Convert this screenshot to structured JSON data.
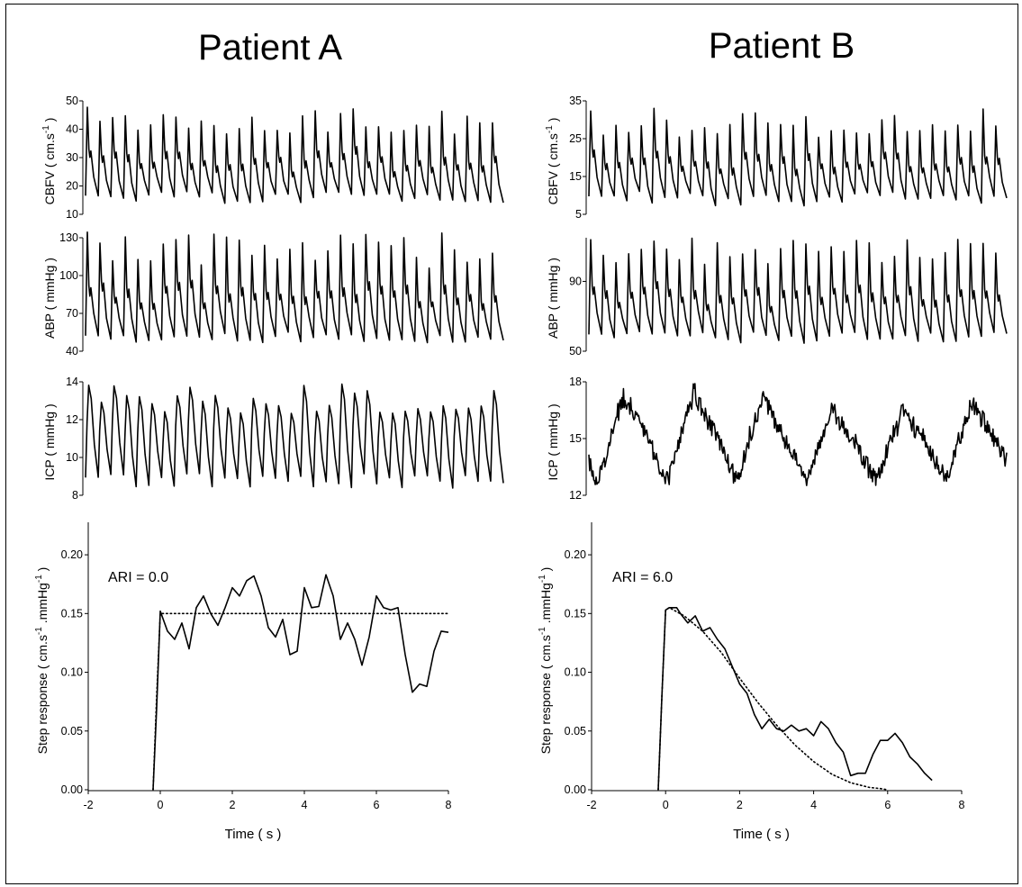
{
  "titles": {
    "patient_a": "Patient A",
    "patient_b": "Patient B"
  },
  "labels": {
    "cbfv": "CBFV ( cm.s -1 )",
    "abp": "ABP ( mmHg )",
    "icp": "ICP ( mmHg )",
    "step": "Step response ( cm.s -1 .mmHg -1 )",
    "time": "Time ( s )"
  },
  "chart_data": [
    {
      "type": "line",
      "panel": "Patient A",
      "signal": "CBFV",
      "ylabel": "CBFV ( cm.s -1 )",
      "ylim": [
        10,
        50
      ],
      "yticks": [
        10,
        20,
        30,
        40,
        50
      ],
      "waveform": {
        "beats": 33,
        "baseline": [
          14,
          18
        ],
        "peak": [
          38,
          48
        ]
      }
    },
    {
      "type": "line",
      "panel": "Patient A",
      "signal": "ABP",
      "ylabel": "ABP ( mmHg )",
      "ylim": [
        40,
        130
      ],
      "yticks": [
        40,
        70,
        100,
        130
      ],
      "waveform": {
        "beats": 33,
        "baseline": [
          47,
          55
        ],
        "peak": [
          105,
          135
        ]
      }
    },
    {
      "type": "line",
      "panel": "Patient A",
      "signal": "ICP",
      "ylabel": "ICP ( mmHg )",
      "ylim": [
        8,
        14
      ],
      "yticks": [
        8,
        10,
        12,
        14
      ],
      "waveform": {
        "beats": 33,
        "baseline": [
          8.4,
          9.2
        ],
        "peak": [
          12.3,
          13.9
        ]
      }
    },
    {
      "type": "line",
      "panel": "Patient A",
      "title": "ARI = 0.0",
      "xlabel": "Time ( s )",
      "ylabel": "Step response ( cm.s -1 .mmHg -1 )",
      "xlim": [
        -2,
        8
      ],
      "ylim": [
        0,
        0.22
      ],
      "xticks": [
        -2,
        0,
        2,
        4,
        6,
        8
      ],
      "yticks": [
        0.0,
        0.05,
        0.1,
        0.15,
        0.2
      ],
      "series": [
        {
          "style": "solid",
          "x": [
            -0.2,
            -0.1,
            0.0,
            0.2,
            0.4,
            0.6,
            0.8,
            1.0,
            1.2,
            1.4,
            1.6,
            1.8,
            2.0,
            2.2,
            2.4,
            2.6,
            2.8,
            3.0,
            3.2,
            3.4,
            3.6,
            3.8,
            4.0,
            4.2,
            4.4,
            4.6,
            4.8,
            5.0,
            5.2,
            5.4,
            5.6,
            5.8,
            6.0,
            6.2,
            6.4,
            6.6,
            6.8,
            7.0,
            7.2,
            7.4,
            7.6,
            7.8,
            8.0
          ],
          "y": [
            0.0,
            0.07,
            0.152,
            0.135,
            0.128,
            0.142,
            0.12,
            0.155,
            0.165,
            0.15,
            0.14,
            0.155,
            0.172,
            0.165,
            0.178,
            0.182,
            0.165,
            0.138,
            0.13,
            0.145,
            0.115,
            0.118,
            0.172,
            0.155,
            0.156,
            0.183,
            0.165,
            0.128,
            0.142,
            0.128,
            0.106,
            0.13,
            0.165,
            0.155,
            0.153,
            0.155,
            0.115,
            0.083,
            0.09,
            0.088,
            0.118,
            0.135,
            0.134
          ]
        },
        {
          "style": "dotted",
          "x": [
            -0.2,
            -0.1,
            0.0,
            0.3,
            1.0,
            2.0,
            3.0,
            4.0,
            5.0,
            6.0,
            7.0,
            8.0
          ],
          "y": [
            0.0,
            0.08,
            0.15,
            0.15,
            0.15,
            0.15,
            0.15,
            0.15,
            0.15,
            0.15,
            0.15,
            0.15
          ]
        }
      ]
    },
    {
      "type": "line",
      "panel": "Patient B",
      "signal": "CBFV",
      "ylabel": "CBFV ( cm.s -1 )",
      "ylim": [
        5,
        35
      ],
      "yticks": [
        5,
        15,
        25,
        35
      ],
      "waveform": {
        "beats": 33,
        "baseline": [
          7,
          11
        ],
        "peak": [
          25,
          33
        ]
      }
    },
    {
      "type": "line",
      "panel": "Patient B",
      "signal": "ABP",
      "ylabel": "ABP ( mmHg )",
      "ylim": [
        50,
        115
      ],
      "yticks": [
        50,
        90
      ],
      "waveform": {
        "beats": 33,
        "baseline": [
          54,
          62
        ],
        "peak": [
          100,
          115
        ]
      }
    },
    {
      "type": "line",
      "panel": "Patient B",
      "signal": "ICP",
      "ylabel": "ICP ( mmHg )",
      "ylim": [
        12,
        18
      ],
      "yticks": [
        12,
        15,
        18
      ],
      "waveform": {
        "slow_waves": 6,
        "baseline": [
          12.3,
          13.5
        ],
        "peak": [
          16.4,
          17.5
        ]
      }
    },
    {
      "type": "line",
      "panel": "Patient B",
      "title": "ARI = 6.0",
      "xlabel": "Time ( s )",
      "ylabel": "Step response ( cm.s -1 .mmHg -1 )",
      "xlim": [
        -2,
        8
      ],
      "ylim": [
        0,
        0.22
      ],
      "xticks": [
        -2,
        0,
        2,
        4,
        6,
        8
      ],
      "yticks": [
        0.0,
        0.05,
        0.1,
        0.15,
        0.2
      ],
      "series": [
        {
          "style": "solid",
          "x": [
            -0.2,
            -0.1,
            0.0,
            0.1,
            0.3,
            0.4,
            0.6,
            0.8,
            1.0,
            1.2,
            1.4,
            1.6,
            1.8,
            2.0,
            2.2,
            2.4,
            2.6,
            2.8,
            3.0,
            3.2,
            3.4,
            3.6,
            3.8,
            4.0,
            4.2,
            4.4,
            4.6,
            4.8,
            5.0,
            5.2,
            5.4,
            5.6,
            5.8,
            6.0,
            6.2,
            6.4,
            6.6,
            6.8,
            7.0,
            7.2
          ],
          "y": [
            0.0,
            0.08,
            0.153,
            0.155,
            0.155,
            0.15,
            0.142,
            0.148,
            0.135,
            0.138,
            0.128,
            0.12,
            0.105,
            0.09,
            0.082,
            0.064,
            0.052,
            0.06,
            0.052,
            0.05,
            0.055,
            0.05,
            0.052,
            0.046,
            0.058,
            0.052,
            0.04,
            0.032,
            0.012,
            0.014,
            0.014,
            0.03,
            0.042,
            0.042,
            0.048,
            0.04,
            0.028,
            0.022,
            0.014,
            0.008
          ]
        },
        {
          "style": "dotted",
          "x": [
            -0.2,
            -0.1,
            0.0,
            0.1,
            0.5,
            1.0,
            1.5,
            2.0,
            2.5,
            3.0,
            3.5,
            4.0,
            4.5,
            5.0,
            5.5,
            5.8,
            6.0
          ],
          "y": [
            0.0,
            0.08,
            0.153,
            0.155,
            0.148,
            0.135,
            0.117,
            0.095,
            0.074,
            0.055,
            0.038,
            0.024,
            0.013,
            0.006,
            0.002,
            0.001,
            0.0
          ]
        }
      ]
    }
  ]
}
